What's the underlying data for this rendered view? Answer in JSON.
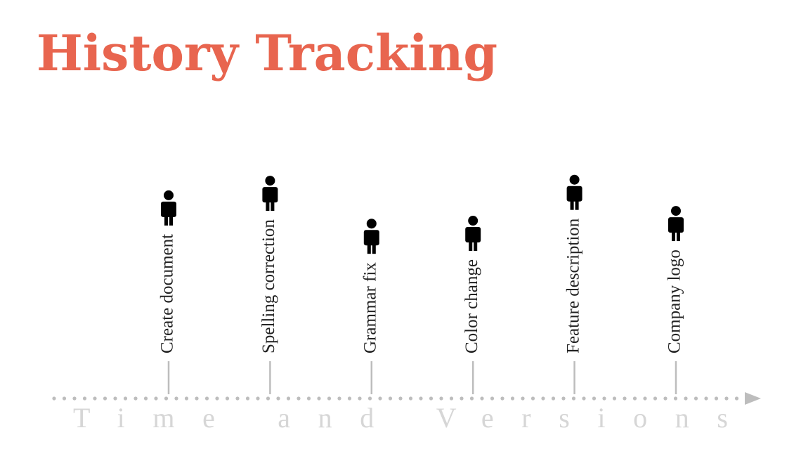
{
  "header": {
    "title": "History Tracking"
  },
  "timeline": {
    "axis_label": "Time and Versions",
    "events": [
      {
        "label": "Create document"
      },
      {
        "label": "Spelling correction"
      },
      {
        "label": "Grammar fix"
      },
      {
        "label": "Color change"
      },
      {
        "label": "Feature description"
      },
      {
        "label": "Company logo"
      }
    ]
  }
}
